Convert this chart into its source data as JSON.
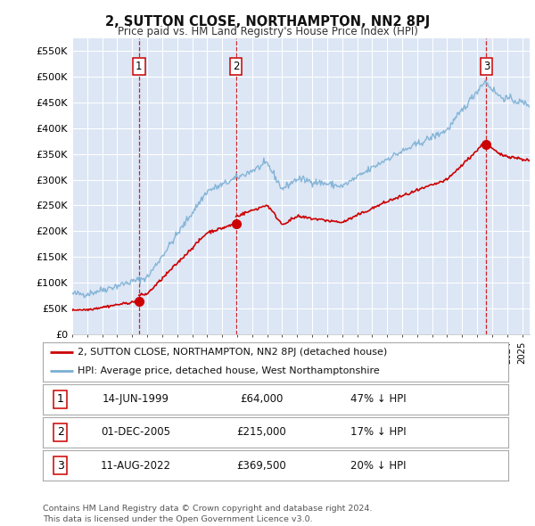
{
  "title": "2, SUTTON CLOSE, NORTHAMPTON, NN2 8PJ",
  "subtitle": "Price paid vs. HM Land Registry's House Price Index (HPI)",
  "ylabel_ticks": [
    "£0",
    "£50K",
    "£100K",
    "£150K",
    "£200K",
    "£250K",
    "£300K",
    "£350K",
    "£400K",
    "£450K",
    "£500K",
    "£550K"
  ],
  "ytick_values": [
    0,
    50000,
    100000,
    150000,
    200000,
    250000,
    300000,
    350000,
    400000,
    450000,
    500000,
    550000
  ],
  "ylim": [
    0,
    575000
  ],
  "background_color": "#ffffff",
  "plot_bg_color": "#dce6f5",
  "grid_color": "#ffffff",
  "hpi_color": "#7bafd4",
  "price_color": "#cc0000",
  "vline_color": "#cc0000",
  "shade_color": "#c8d8ee",
  "transactions": [
    {
      "date_num": 1999.45,
      "price": 64000,
      "label": "1"
    },
    {
      "date_num": 2005.92,
      "price": 215000,
      "label": "2"
    },
    {
      "date_num": 2022.61,
      "price": 369500,
      "label": "3"
    }
  ],
  "legend_entries": [
    "2, SUTTON CLOSE, NORTHAMPTON, NN2 8PJ (detached house)",
    "HPI: Average price, detached house, West Northamptonshire"
  ],
  "table_rows": [
    {
      "label": "1",
      "date": "14-JUN-1999",
      "price": "£64,000",
      "hpi": "47% ↓ HPI"
    },
    {
      "label": "2",
      "date": "01-DEC-2005",
      "price": "£215,000",
      "hpi": "17% ↓ HPI"
    },
    {
      "label": "3",
      "date": "11-AUG-2022",
      "price": "£369,500",
      "hpi": "20% ↓ HPI"
    }
  ],
  "footnote": "Contains HM Land Registry data © Crown copyright and database right 2024.\nThis data is licensed under the Open Government Licence v3.0.",
  "xmin": 1995,
  "xmax": 2025.5
}
